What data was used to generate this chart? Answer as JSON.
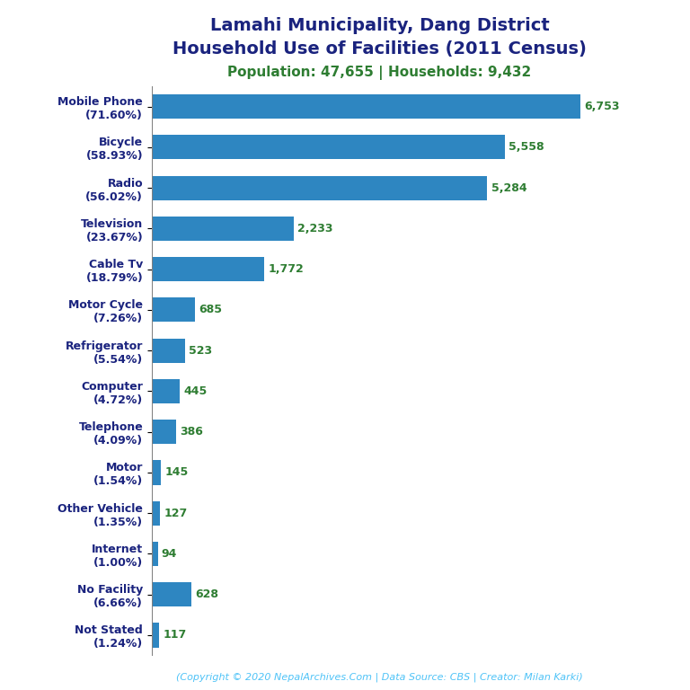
{
  "title_line1": "Lamahi Municipality, Dang District",
  "title_line2": "Household Use of Facilities (2011 Census)",
  "subtitle": "Population: 47,655 | Households: 9,432",
  "categories": [
    "Mobile Phone\n(71.60%)",
    "Bicycle\n(58.93%)",
    "Radio\n(56.02%)",
    "Television\n(23.67%)",
    "Cable Tv\n(18.79%)",
    "Motor Cycle\n(7.26%)",
    "Refrigerator\n(5.54%)",
    "Computer\n(4.72%)",
    "Telephone\n(4.09%)",
    "Motor\n(1.54%)",
    "Other Vehicle\n(1.35%)",
    "Internet\n(1.00%)",
    "No Facility\n(6.66%)",
    "Not Stated\n(1.24%)"
  ],
  "values": [
    6753,
    5558,
    5284,
    2233,
    1772,
    685,
    523,
    445,
    386,
    145,
    127,
    94,
    628,
    117
  ],
  "value_labels": [
    "6,753",
    "5,558",
    "5,284",
    "2,233",
    "1,772",
    "685",
    "523",
    "445",
    "386",
    "145",
    "127",
    "94",
    "628",
    "117"
  ],
  "bar_color": "#2e86c1",
  "title_color": "#1a237e",
  "subtitle_color": "#2e7d32",
  "value_color": "#2e7d32",
  "label_color": "#1a237e",
  "footer_color": "#4fc3f7",
  "footer_text": "(Copyright © 2020 NepalArchives.Com | Data Source: CBS | Creator: Milan Karki)",
  "background_color": "#ffffff",
  "xlim": [
    0,
    7500
  ]
}
